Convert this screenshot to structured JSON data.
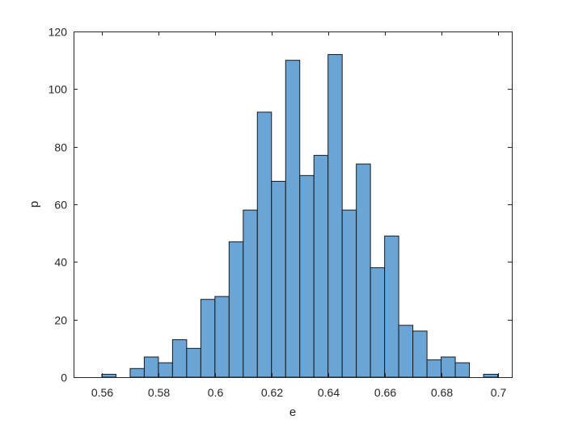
{
  "chart_data": {
    "type": "bar",
    "subtype": "histogram",
    "xlabel": "e",
    "ylabel": "p",
    "xlim": [
      0.55,
      0.705
    ],
    "ylim": [
      0,
      120
    ],
    "xticks": [
      0.56,
      0.58,
      0.6,
      0.62,
      0.64,
      0.66,
      0.68,
      0.7
    ],
    "xtick_labels": [
      "0.56",
      "0.58",
      "0.6",
      "0.62",
      "0.64",
      "0.66",
      "0.68",
      "0.7"
    ],
    "yticks": [
      0,
      20,
      40,
      60,
      80,
      100,
      120
    ],
    "ytick_labels": [
      "0",
      "20",
      "40",
      "60",
      "80",
      "100",
      "120"
    ],
    "bin_width": 0.005,
    "bins": [
      {
        "x0": 0.56,
        "x1": 0.565,
        "count": 1
      },
      {
        "x0": 0.57,
        "x1": 0.575,
        "count": 3
      },
      {
        "x0": 0.575,
        "x1": 0.58,
        "count": 7
      },
      {
        "x0": 0.58,
        "x1": 0.585,
        "count": 5
      },
      {
        "x0": 0.585,
        "x1": 0.59,
        "count": 13
      },
      {
        "x0": 0.59,
        "x1": 0.595,
        "count": 10
      },
      {
        "x0": 0.595,
        "x1": 0.6,
        "count": 27
      },
      {
        "x0": 0.6,
        "x1": 0.605,
        "count": 28
      },
      {
        "x0": 0.605,
        "x1": 0.61,
        "count": 47
      },
      {
        "x0": 0.61,
        "x1": 0.615,
        "count": 58
      },
      {
        "x0": 0.615,
        "x1": 0.62,
        "count": 92
      },
      {
        "x0": 0.62,
        "x1": 0.625,
        "count": 68
      },
      {
        "x0": 0.625,
        "x1": 0.63,
        "count": 110
      },
      {
        "x0": 0.63,
        "x1": 0.635,
        "count": 70
      },
      {
        "x0": 0.635,
        "x1": 0.64,
        "count": 77
      },
      {
        "x0": 0.64,
        "x1": 0.645,
        "count": 112
      },
      {
        "x0": 0.645,
        "x1": 0.65,
        "count": 58
      },
      {
        "x0": 0.65,
        "x1": 0.655,
        "count": 74
      },
      {
        "x0": 0.655,
        "x1": 0.66,
        "count": 38
      },
      {
        "x0": 0.66,
        "x1": 0.665,
        "count": 49
      },
      {
        "x0": 0.665,
        "x1": 0.67,
        "count": 18
      },
      {
        "x0": 0.67,
        "x1": 0.675,
        "count": 16
      },
      {
        "x0": 0.675,
        "x1": 0.68,
        "count": 6
      },
      {
        "x0": 0.68,
        "x1": 0.685,
        "count": 7
      },
      {
        "x0": 0.685,
        "x1": 0.69,
        "count": 5
      },
      {
        "x0": 0.695,
        "x1": 0.7,
        "count": 1
      }
    ],
    "grid": false,
    "box": true,
    "colors": {
      "bar_fill": "#6aa5d6",
      "bar_edge": "#1a1a1a",
      "axis": "#262626"
    }
  }
}
